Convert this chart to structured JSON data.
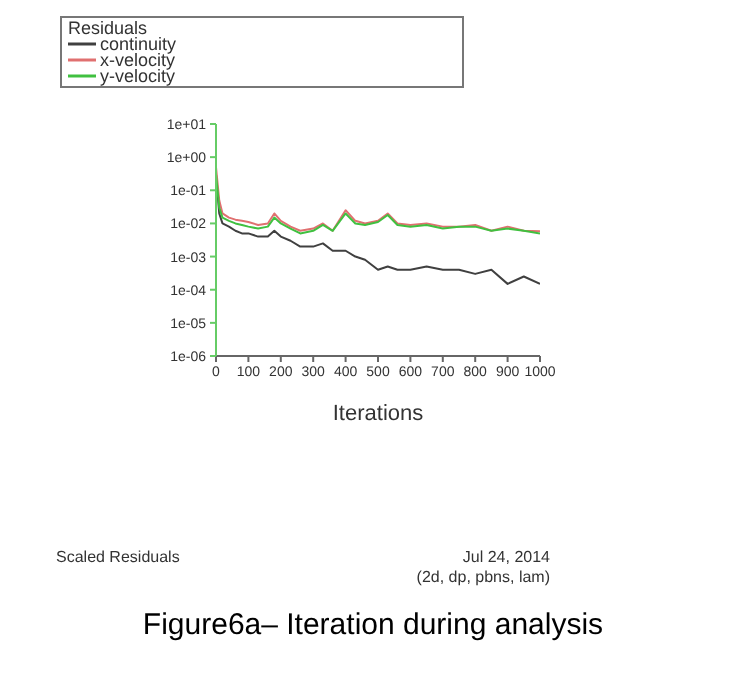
{
  "chart_data": {
    "type": "line",
    "legend_title": "Residuals",
    "xlabel": "Iterations",
    "annotations": [
      "Scaled Residuals",
      "Jul 24, 2014",
      "(2d, dp, pbns, lam)",
      "Figure6a– Iteration during analysis"
    ],
    "x": [
      0,
      10,
      20,
      40,
      60,
      80,
      100,
      130,
      160,
      180,
      200,
      230,
      260,
      300,
      330,
      360,
      400,
      430,
      460,
      500,
      530,
      560,
      600,
      650,
      700,
      750,
      800,
      850,
      900,
      950,
      1000
    ],
    "series": [
      {
        "name": "continuity",
        "color": "#404040",
        "values": [
          0.3,
          0.02,
          0.01,
          0.008,
          0.006,
          0.005,
          0.005,
          0.004,
          0.004,
          0.006,
          0.004,
          0.003,
          0.002,
          0.002,
          0.0025,
          0.0015,
          0.0015,
          0.001,
          0.0008,
          0.0004,
          0.0005,
          0.0004,
          0.0004,
          0.0005,
          0.0004,
          0.0004,
          0.0003,
          0.0004,
          0.00015,
          0.00025,
          0.00015
        ]
      },
      {
        "name": "x-velocity",
        "color": "#e07070",
        "values": [
          0.5,
          0.05,
          0.02,
          0.015,
          0.013,
          0.012,
          0.011,
          0.009,
          0.01,
          0.02,
          0.012,
          0.008,
          0.006,
          0.007,
          0.01,
          0.006,
          0.025,
          0.012,
          0.01,
          0.012,
          0.02,
          0.01,
          0.009,
          0.01,
          0.008,
          0.008,
          0.009,
          0.006,
          0.008,
          0.006,
          0.0058
        ]
      },
      {
        "name": "y-velocity",
        "color": "#40c040",
        "values": [
          0.3,
          0.03,
          0.015,
          0.012,
          0.01,
          0.009,
          0.008,
          0.007,
          0.008,
          0.015,
          0.01,
          0.007,
          0.005,
          0.006,
          0.009,
          0.006,
          0.02,
          0.01,
          0.009,
          0.011,
          0.018,
          0.009,
          0.008,
          0.009,
          0.007,
          0.008,
          0.008,
          0.006,
          0.007,
          0.006,
          0.005
        ]
      }
    ],
    "xlim": [
      0,
      1000
    ],
    "xticks": [
      0,
      100,
      200,
      300,
      400,
      500,
      600,
      700,
      800,
      900,
      1000
    ],
    "ylim": [
      1e-06,
      10
    ],
    "yticks": [
      {
        "value": 1e-06,
        "label": "1e-06"
      },
      {
        "value": 1e-05,
        "label": "1e-05"
      },
      {
        "value": 0.0001,
        "label": "1e-04"
      },
      {
        "value": 0.001,
        "label": "1e-03"
      },
      {
        "value": 0.01,
        "label": "1e-02"
      },
      {
        "value": 0.1,
        "label": "1e-01"
      },
      {
        "value": 1,
        "label": "1e+00"
      },
      {
        "value": 10,
        "label": "1e+01"
      }
    ],
    "log": true,
    "grid": false,
    "legend": "top left",
    "marker": "none",
    "line_style": "solid"
  }
}
